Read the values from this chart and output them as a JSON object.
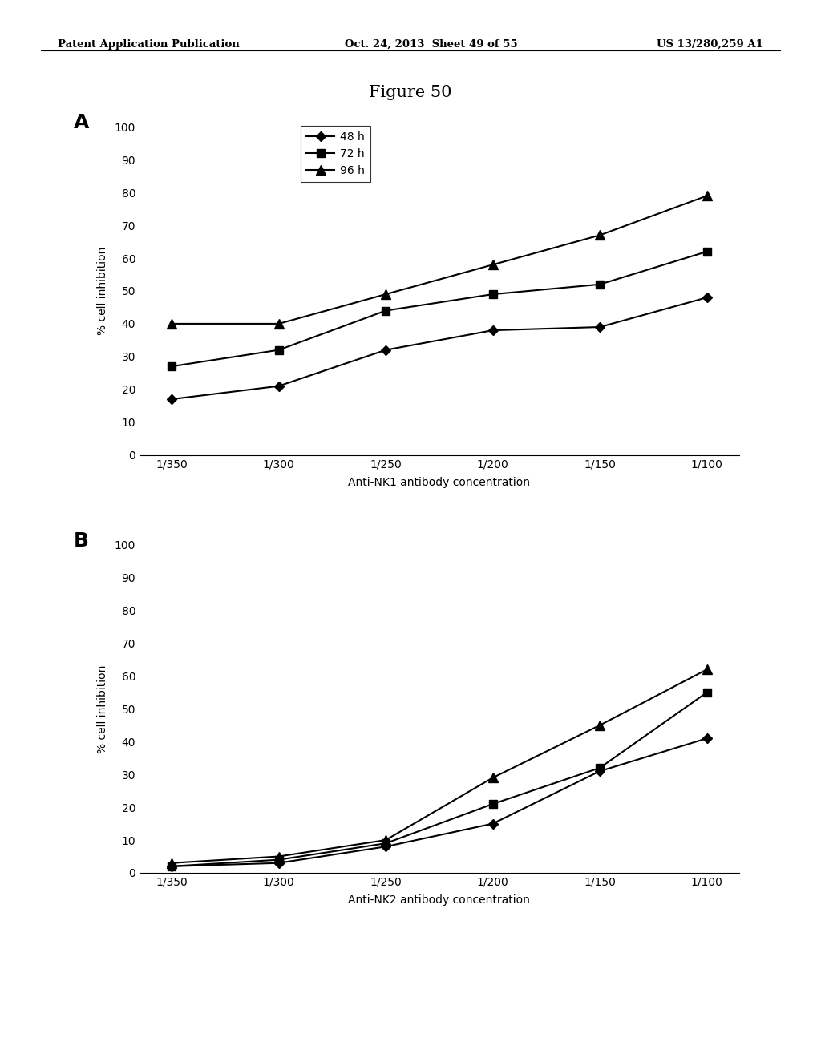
{
  "figure_title": "Figure 50",
  "x_labels": [
    "1/350",
    "1/300",
    "1/250",
    "1/200",
    "1/150",
    "1/100"
  ],
  "x_positions": [
    0,
    1,
    2,
    3,
    4,
    5
  ],
  "panel_A": {
    "label": "A",
    "xlabel": "Anti-NK1 antibody concentration",
    "ylabel": "% cell inhibition",
    "ylim": [
      0,
      100
    ],
    "yticks": [
      0,
      10,
      20,
      30,
      40,
      50,
      60,
      70,
      80,
      90,
      100
    ],
    "series": [
      {
        "label": "48 h",
        "marker": "D",
        "values": [
          17,
          21,
          32,
          38,
          39,
          48
        ]
      },
      {
        "label": "72 h",
        "marker": "s",
        "values": [
          27,
          32,
          44,
          49,
          52,
          62
        ]
      },
      {
        "label": "96 h",
        "marker": "^",
        "values": [
          40,
          40,
          49,
          58,
          67,
          79
        ]
      }
    ]
  },
  "panel_B": {
    "label": "B",
    "xlabel": "Anti-NK2 antibody concentration",
    "ylabel": "% cell inhibition",
    "ylim": [
      0,
      100
    ],
    "yticks": [
      0,
      10,
      20,
      30,
      40,
      50,
      60,
      70,
      80,
      90,
      100
    ],
    "series": [
      {
        "label": "48 h",
        "marker": "D",
        "values": [
          2,
          3,
          8,
          15,
          31,
          41
        ]
      },
      {
        "label": "72 h",
        "marker": "s",
        "values": [
          2,
          4,
          9,
          21,
          32,
          55
        ]
      },
      {
        "label": "96 h",
        "marker": "^",
        "values": [
          3,
          5,
          10,
          29,
          45,
          62
        ]
      }
    ]
  },
  "line_color": "#000000",
  "bg_color": "#ffffff",
  "header_left": "Patent Application Publication",
  "header_center": "Oct. 24, 2013  Sheet 49 of 55",
  "header_right": "US 13/280,259 A1",
  "header_fontsize": 9.5,
  "title_fontsize": 15,
  "axis_fontsize": 10,
  "label_fontsize": 18
}
